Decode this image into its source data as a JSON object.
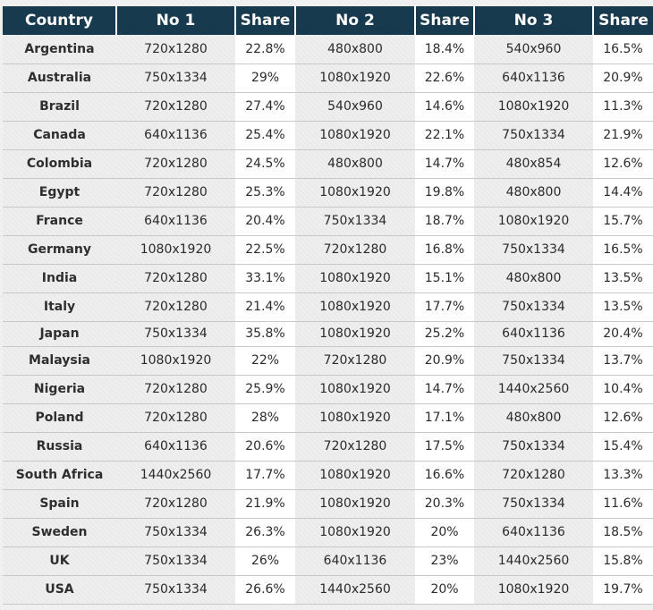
{
  "table": {
    "headers": [
      "Country",
      "No 1",
      "Share",
      "No 2",
      "Share",
      "No 3",
      "Share"
    ],
    "rows": [
      [
        "Argentina",
        "720x1280",
        "22.8%",
        "480x800",
        "18.4%",
        "540x960",
        "16.5%"
      ],
      [
        "Australia",
        "750x1334",
        "29%",
        "1080x1920",
        "22.6%",
        "640x1136",
        "20.9%"
      ],
      [
        "Brazil",
        "720x1280",
        "27.4%",
        "540x960",
        "14.6%",
        "1080x1920",
        "11.3%"
      ],
      [
        "Canada",
        "640x1136",
        "25.4%",
        "1080x1920",
        "22.1%",
        "750x1334",
        "21.9%"
      ],
      [
        "Colombia",
        "720x1280",
        "24.5%",
        "480x800",
        "14.7%",
        "480x854",
        "12.6%"
      ],
      [
        "Egypt",
        "720x1280",
        "25.3%",
        "1080x1920",
        "19.8%",
        "480x800",
        "14.4%"
      ],
      [
        "France",
        "640x1136",
        "20.4%",
        "750x1334",
        "18.7%",
        "1080x1920",
        "15.7%"
      ],
      [
        "Germany",
        "1080x1920",
        "22.5%",
        "720x1280",
        "16.8%",
        "750x1334",
        "16.5%"
      ],
      [
        "India",
        "720x1280",
        "33.1%",
        "1080x1920",
        "15.1%",
        "480x800",
        "13.5%"
      ],
      [
        "Italy",
        "720x1280",
        "21.4%",
        "1080x1920",
        "17.7%",
        "750x1334",
        "13.5%"
      ],
      [
        "Japan",
        "750x1334",
        "35.8%",
        "1080x1920",
        "25.2%",
        "640x1136",
        "20.4%"
      ],
      [
        "Malaysia",
        "1080x1920",
        "22%",
        "720x1280",
        "20.9%",
        "750x1334",
        "13.7%"
      ],
      [
        "Nigeria",
        "720x1280",
        "25.9%",
        "1080x1920",
        "14.7%",
        "1440x2560",
        "10.4%"
      ],
      [
        "Poland",
        "720x1280",
        "28%",
        "1080x1920",
        "17.1%",
        "480x800",
        "12.6%"
      ],
      [
        "Russia",
        "640x1136",
        "20.6%",
        "720x1280",
        "17.5%",
        "750x1334",
        "15.4%"
      ],
      [
        "South Africa",
        "1440x2560",
        "17.7%",
        "1080x1920",
        "16.6%",
        "720x1280",
        "13.3%"
      ],
      [
        "Spain",
        "720x1280",
        "21.9%",
        "1080x1920",
        "20.3%",
        "750x1334",
        "11.6%"
      ],
      [
        "Sweden",
        "750x1334",
        "26.3%",
        "1080x1920",
        "20%",
        "640x1136",
        "18.5%"
      ],
      [
        "UK",
        "750x1334",
        "26%",
        "640x1136",
        "23%",
        "1440x2560",
        "15.8%"
      ],
      [
        "USA",
        "750x1334",
        "26.6%",
        "1440x2560",
        "20%",
        "1080x1920",
        "19.7%"
      ]
    ]
  }
}
